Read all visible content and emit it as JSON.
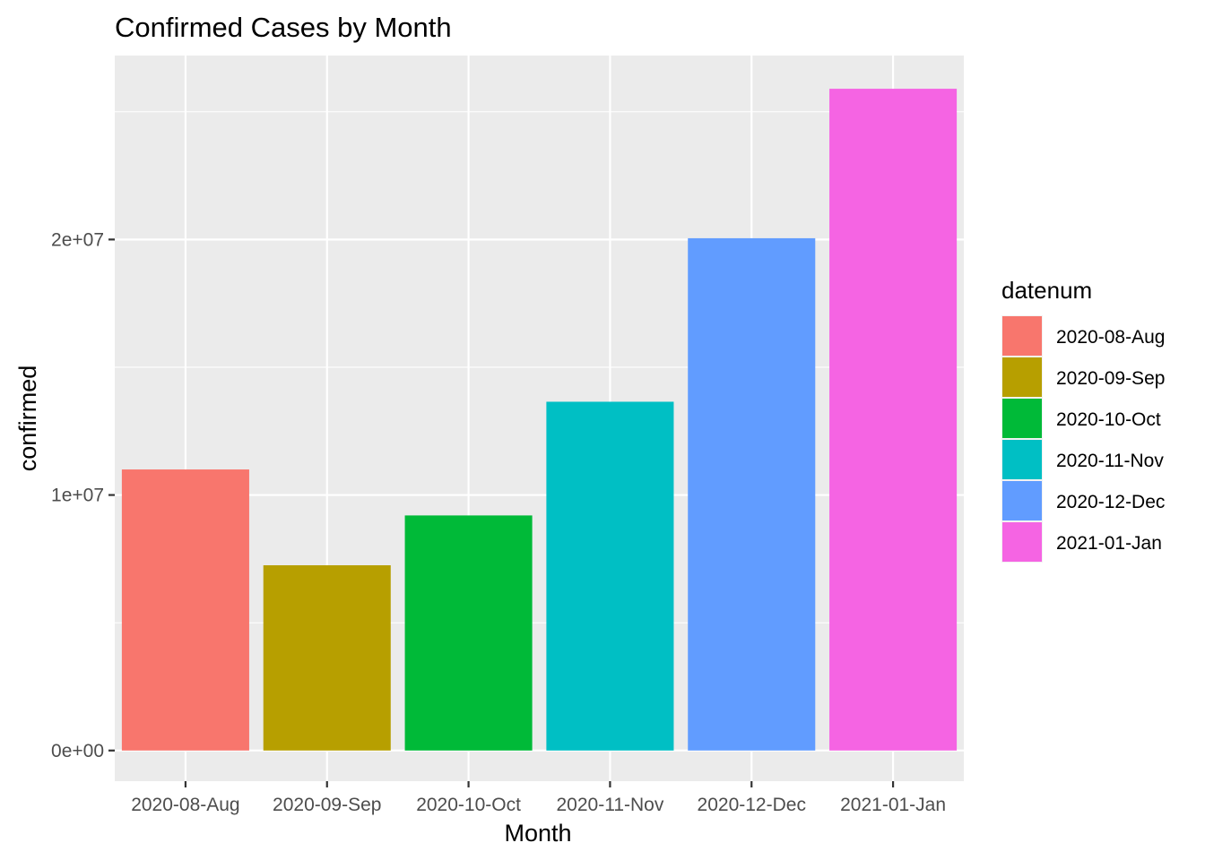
{
  "chart_data": {
    "type": "bar",
    "title": "Confirmed Cases by Month",
    "xlabel": "Month",
    "ylabel": "confirmed",
    "categories": [
      "2020-08-Aug",
      "2020-09-Sep",
      "2020-10-Oct",
      "2020-11-Nov",
      "2020-12-Dec",
      "2021-01-Jan"
    ],
    "values": [
      11000000,
      7250000,
      9200000,
      13650000,
      20050000,
      25900000
    ],
    "colors": [
      "#F8766D",
      "#B79F00",
      "#00BA38",
      "#00BFC4",
      "#619CFF",
      "#F564E3"
    ],
    "ylim": [
      -1200000,
      27200000
    ],
    "yticks": [
      0,
      10000000,
      20000000
    ],
    "ytick_labels": [
      "0e+00",
      "1e+07",
      "2e+07"
    ],
    "grid": true,
    "legend": {
      "title": "datenum",
      "position": "right",
      "entries": [
        "2020-08-Aug",
        "2020-09-Sep",
        "2020-10-Oct",
        "2020-11-Nov",
        "2020-12-Dec",
        "2021-01-Jan"
      ]
    }
  }
}
